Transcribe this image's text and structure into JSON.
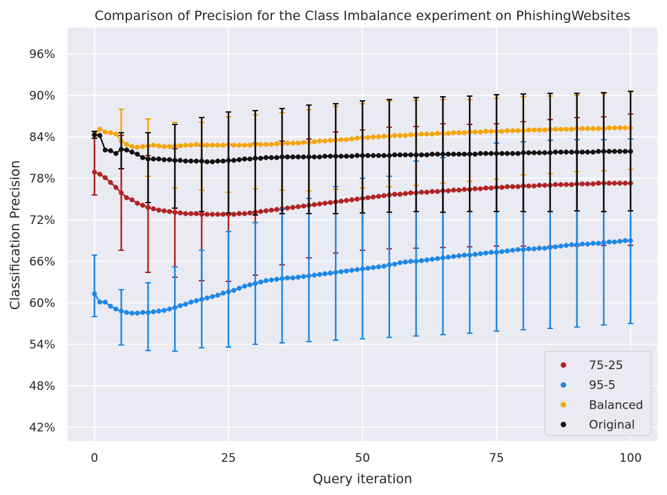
{
  "chart_data": {
    "type": "scatter",
    "title": "Comparison of Precision for the Class Imbalance experiment on PhishingWebsites",
    "xlabel": "Query iteration",
    "ylabel": "Classification Precision",
    "xlim": [
      -5,
      105
    ],
    "ylim": [
      40.0,
      99.8
    ],
    "x_ticks": [
      0,
      25,
      50,
      75,
      100
    ],
    "y_ticks": [
      42,
      48,
      54,
      60,
      66,
      72,
      78,
      84,
      90,
      96
    ],
    "y_tick_labels": [
      "42%",
      "48%",
      "54%",
      "60%",
      "66%",
      "72%",
      "78%",
      "84%",
      "90%",
      "96%"
    ],
    "grid": true,
    "background": "#eaeaf2",
    "legend_position": "bottom-right",
    "error_bar_every": 5,
    "series": [
      {
        "name": "75-25",
        "color": "#b22222",
        "values": [
          78.9,
          78.6,
          78.1,
          77.4,
          76.7,
          75.9,
          75.2,
          74.9,
          74.4,
          74.1,
          73.8,
          73.6,
          73.4,
          73.3,
          73.2,
          73.1,
          73.0,
          72.9,
          72.9,
          72.9,
          72.8,
          72.8,
          72.8,
          72.8,
          72.8,
          72.8,
          72.8,
          72.9,
          72.9,
          73.0,
          73.1,
          73.2,
          73.3,
          73.4,
          73.5,
          73.6,
          73.7,
          73.8,
          73.9,
          74.0,
          74.1,
          74.2,
          74.3,
          74.4,
          74.5,
          74.6,
          74.7,
          74.8,
          74.9,
          75.0,
          75.1,
          75.2,
          75.3,
          75.4,
          75.5,
          75.6,
          75.7,
          75.7,
          75.8,
          75.9,
          75.9,
          76.0,
          76.0,
          76.1,
          76.1,
          76.2,
          76.2,
          76.3,
          76.3,
          76.4,
          76.4,
          76.5,
          76.5,
          76.6,
          76.6,
          76.7,
          76.7,
          76.8,
          76.8,
          76.8,
          76.9,
          76.9,
          76.9,
          77.0,
          77.0,
          77.0,
          77.1,
          77.1,
          77.1,
          77.1,
          77.2,
          77.2,
          77.2,
          77.2,
          77.3,
          77.3,
          77.3,
          77.3,
          77.3,
          77.3,
          77.3
        ],
        "error_low": [
          75.6,
          67.6,
          64.4,
          63.7,
          63.2,
          63.1,
          64.0,
          65.5,
          66.5,
          67.2,
          67.6,
          67.8,
          67.9,
          68.0,
          68.1,
          68.2,
          68.2,
          68.2,
          68.2,
          68.3,
          68.3
        ],
        "error_high": [
          84.3,
          84.2,
          81.3,
          82.3,
          82.7,
          82.9,
          83.1,
          83.4,
          83.7,
          84.7,
          85.0,
          85.4,
          85.5,
          85.9,
          85.8,
          85.9,
          86.2,
          86.5,
          86.8,
          86.9,
          87.3
        ]
      },
      {
        "name": "95-5",
        "color": "#1e88e5",
        "values": [
          61.3,
          60.1,
          60.1,
          59.5,
          59.1,
          58.8,
          58.6,
          58.5,
          58.5,
          58.6,
          58.6,
          58.7,
          58.8,
          58.9,
          59.1,
          59.3,
          59.6,
          59.8,
          60.1,
          60.3,
          60.5,
          60.7,
          60.9,
          61.1,
          61.4,
          61.6,
          61.8,
          62.1,
          62.4,
          62.6,
          62.8,
          63.0,
          63.2,
          63.3,
          63.4,
          63.5,
          63.6,
          63.6,
          63.7,
          63.8,
          63.9,
          64.0,
          64.1,
          64.2,
          64.3,
          64.4,
          64.5,
          64.6,
          64.7,
          64.8,
          64.9,
          65.0,
          65.1,
          65.2,
          65.3,
          65.5,
          65.6,
          65.8,
          65.9,
          66.0,
          66.0,
          66.1,
          66.2,
          66.3,
          66.4,
          66.5,
          66.6,
          66.7,
          66.8,
          66.9,
          66.9,
          67.0,
          67.1,
          67.2,
          67.3,
          67.3,
          67.4,
          67.5,
          67.6,
          67.7,
          67.7,
          67.8,
          67.8,
          67.9,
          67.9,
          68.0,
          68.1,
          68.2,
          68.3,
          68.4,
          68.4,
          68.5,
          68.5,
          68.6,
          68.6,
          68.7,
          68.8,
          68.8,
          68.9,
          69.0,
          69.0
        ],
        "error_low": [
          58.0,
          53.9,
          53.1,
          53.0,
          53.5,
          53.6,
          54.0,
          54.2,
          54.4,
          54.6,
          54.8,
          55.0,
          55.2,
          55.4,
          55.6,
          55.9,
          56.1,
          56.3,
          56.5,
          56.8,
          57.0
        ],
        "error_high": [
          66.9,
          61.9,
          62.9,
          65.2,
          67.6,
          70.3,
          71.6,
          73.6,
          75.1,
          76.8,
          78.0,
          78.3,
          80.5,
          81.0,
          81.6,
          83.1,
          83.3,
          83.5,
          83.6,
          83.6,
          83.7
        ]
      },
      {
        "name": "Balanced",
        "color": "#f5a50a",
        "values": [
          84.2,
          85.1,
          84.7,
          84.6,
          84.4,
          83.4,
          82.9,
          82.6,
          82.5,
          82.6,
          82.7,
          82.8,
          82.7,
          82.6,
          82.6,
          82.7,
          82.7,
          82.8,
          82.8,
          82.9,
          82.9,
          82.8,
          82.8,
          82.8,
          82.8,
          82.9,
          82.8,
          82.8,
          82.8,
          82.8,
          82.9,
          82.9,
          82.9,
          82.9,
          83.0,
          83.0,
          83.1,
          83.1,
          83.1,
          83.2,
          83.2,
          83.3,
          83.4,
          83.4,
          83.5,
          83.5,
          83.6,
          83.6,
          83.7,
          83.8,
          83.9,
          83.9,
          84.0,
          84.0,
          84.1,
          84.1,
          84.2,
          84.2,
          84.2,
          84.3,
          84.3,
          84.4,
          84.4,
          84.4,
          84.5,
          84.5,
          84.5,
          84.6,
          84.6,
          84.6,
          84.7,
          84.7,
          84.7,
          84.8,
          84.8,
          84.8,
          84.8,
          84.9,
          84.9,
          84.9,
          84.9,
          85.0,
          85.0,
          85.0,
          85.0,
          85.1,
          85.1,
          85.1,
          85.1,
          85.1,
          85.2,
          85.2,
          85.2,
          85.2,
          85.2,
          85.2,
          85.3,
          85.3,
          85.3,
          85.3,
          85.3
        ],
        "error_low": [
          83.8,
          79.4,
          78.3,
          76.6,
          76.3,
          76.0,
          76.5,
          76.3,
          76.2,
          76.4,
          76.6,
          76.8,
          77.0,
          77.3,
          77.6,
          77.9,
          78.5,
          78.7,
          79.0,
          79.1,
          79.3
        ],
        "error_high": [
          84.7,
          88.0,
          86.6,
          86.1,
          86.1,
          86.9,
          87.2,
          87.5,
          87.9,
          88.4,
          88.8,
          89.2,
          89.3,
          89.4,
          89.4,
          89.6,
          89.8,
          89.9,
          90.0,
          90.2,
          90.5
        ]
      },
      {
        "name": "Original",
        "color": "#111111",
        "values": [
          84.3,
          84.2,
          82.1,
          82.0,
          81.6,
          82.2,
          82.1,
          81.8,
          81.5,
          81.0,
          80.8,
          80.8,
          80.8,
          80.7,
          80.7,
          80.6,
          80.6,
          80.5,
          80.5,
          80.5,
          80.5,
          80.4,
          80.4,
          80.5,
          80.5,
          80.6,
          80.6,
          80.7,
          80.8,
          80.8,
          80.9,
          80.9,
          81.0,
          81.0,
          81.0,
          81.1,
          81.1,
          81.1,
          81.1,
          81.1,
          81.1,
          81.1,
          81.1,
          81.2,
          81.2,
          81.2,
          81.2,
          81.2,
          81.2,
          81.3,
          81.3,
          81.3,
          81.3,
          81.3,
          81.3,
          81.3,
          81.4,
          81.4,
          81.4,
          81.4,
          81.4,
          81.4,
          81.4,
          81.5,
          81.5,
          81.5,
          81.5,
          81.5,
          81.5,
          81.5,
          81.5,
          81.5,
          81.6,
          81.6,
          81.6,
          81.6,
          81.6,
          81.6,
          81.6,
          81.6,
          81.7,
          81.7,
          81.7,
          81.7,
          81.7,
          81.7,
          81.8,
          81.8,
          81.8,
          81.8,
          81.8,
          81.8,
          81.8,
          81.8,
          81.9,
          81.9,
          81.9,
          81.9,
          81.9,
          81.9,
          81.9
        ],
        "error_low": [
          83.8,
          79.4,
          74.5,
          73.7,
          73.2,
          73.0,
          72.7,
          72.9,
          72.9,
          72.9,
          73.0,
          73.1,
          73.2,
          73.1,
          73.2,
          73.2,
          73.2,
          73.2,
          73.3,
          73.2,
          73.3
        ],
        "error_high": [
          84.8,
          84.6,
          84.6,
          85.8,
          86.8,
          87.6,
          87.8,
          88.1,
          88.6,
          88.8,
          89.2,
          89.4,
          89.7,
          89.8,
          89.9,
          90.1,
          90.2,
          90.3,
          90.3,
          90.4,
          90.6
        ]
      }
    ]
  }
}
